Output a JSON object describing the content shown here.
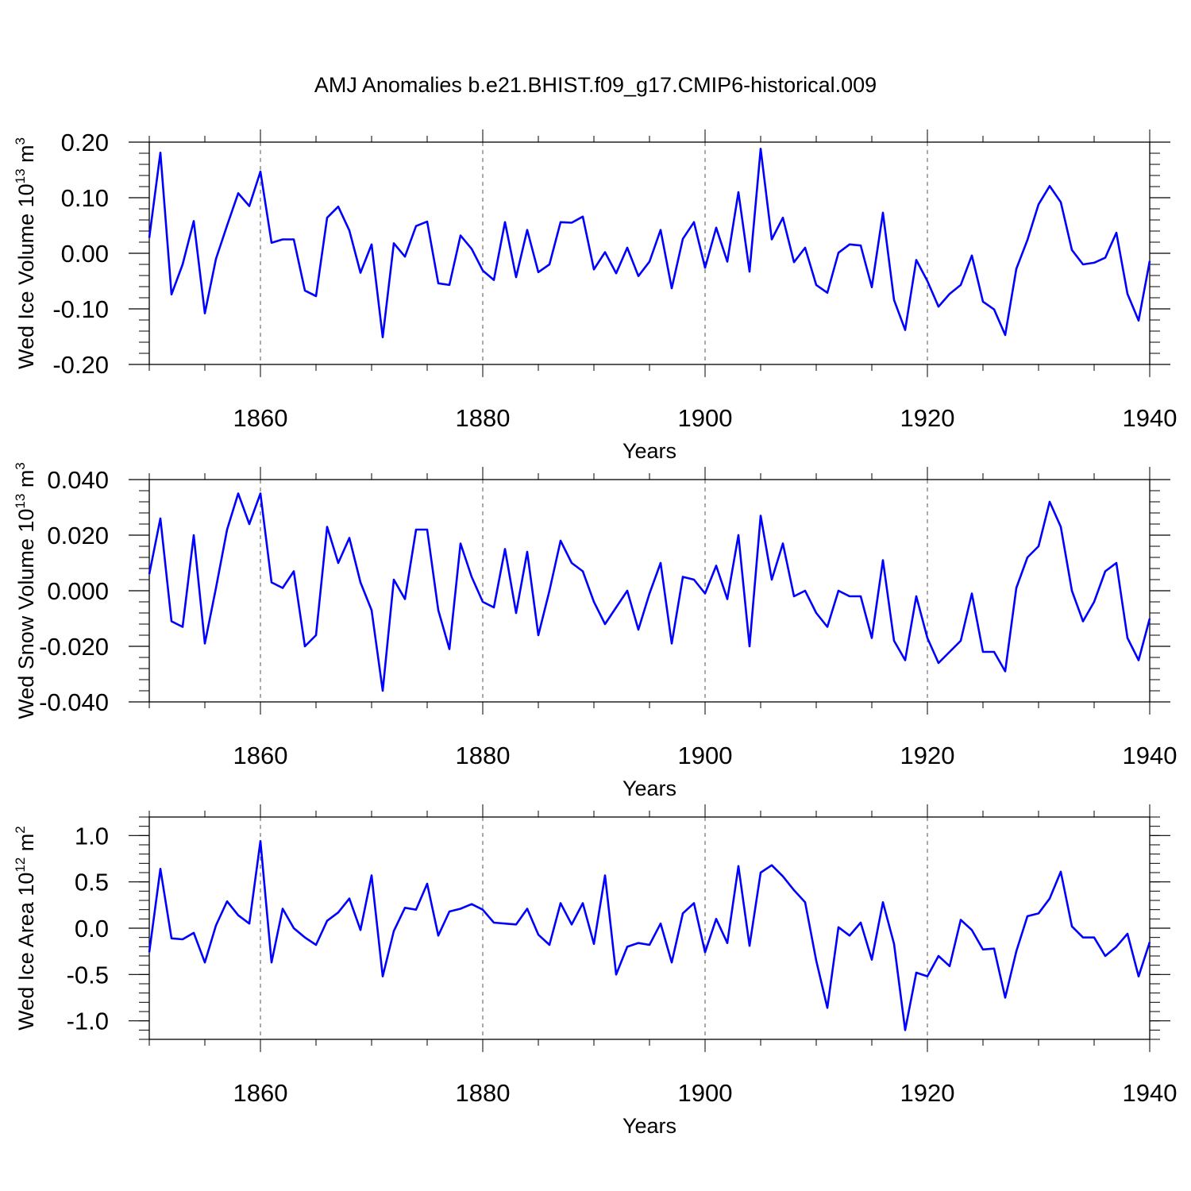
{
  "title": "AMJ Anomalies b.e21.BHIST.f09_g17.CMIP6-historical.009",
  "line_color": "#0000ff",
  "chart_data": [
    {
      "type": "line",
      "ylabel_main": "Wed Ice Volume 10",
      "ylabel_exp": "13",
      "ylabel_unit": " m",
      "ylabel_unit_exp": "3",
      "xlabel": "Years",
      "xlim": [
        1850,
        1940
      ],
      "ylim": [
        -0.2,
        0.2
      ],
      "yticks": [
        -0.2,
        -0.1,
        0.0,
        0.1,
        0.2
      ],
      "ytick_labels": [
        "-0.20",
        "-0.10",
        "0.00",
        "0.10",
        "0.20"
      ],
      "xticks": [
        1860,
        1880,
        1900,
        1920,
        1940
      ],
      "xtick_labels": [
        "1860",
        "1880",
        "1900",
        "1920",
        "1940"
      ],
      "x_start": 1850,
      "values": [
        0.028,
        0.181,
        -0.074,
        -0.02,
        0.058,
        -0.108,
        -0.01,
        0.05,
        0.108,
        0.085,
        0.147,
        0.019,
        0.025,
        0.025,
        -0.067,
        -0.077,
        0.064,
        0.084,
        0.041,
        -0.035,
        0.016,
        -0.151,
        0.018,
        -0.006,
        0.049,
        0.057,
        -0.054,
        -0.057,
        0.032,
        0.008,
        -0.031,
        -0.048,
        0.056,
        -0.043,
        0.042,
        -0.034,
        -0.02,
        0.056,
        0.055,
        0.066,
        -0.029,
        0.002,
        -0.036,
        0.01,
        -0.041,
        -0.015,
        0.042,
        -0.063,
        0.026,
        0.056,
        -0.026,
        0.046,
        -0.015,
        0.11,
        -0.033,
        0.188,
        0.025,
        0.064,
        -0.016,
        0.01,
        -0.057,
        -0.071,
        0.001,
        0.016,
        0.014,
        -0.061,
        0.073,
        -0.084,
        -0.138,
        -0.012,
        -0.05,
        -0.096,
        -0.073,
        -0.057,
        -0.004,
        -0.087,
        -0.101,
        -0.147,
        -0.028,
        0.024,
        0.088,
        0.121,
        0.092,
        0.006,
        -0.02,
        -0.017,
        -0.008,
        0.037,
        -0.073,
        -0.121,
        -0.014
      ]
    },
    {
      "type": "line",
      "ylabel_main": "Wed Snow Volume 10",
      "ylabel_exp": "13",
      "ylabel_unit": " m",
      "ylabel_unit_exp": "3",
      "xlabel": "Years",
      "xlim": [
        1850,
        1940
      ],
      "ylim": [
        -0.04,
        0.04
      ],
      "yticks": [
        -0.04,
        -0.02,
        0.0,
        0.02,
        0.04
      ],
      "ytick_labels": [
        "-0.040",
        "-0.020",
        "0.000",
        "0.020",
        "0.040"
      ],
      "xticks": [
        1860,
        1880,
        1900,
        1920,
        1940
      ],
      "xtick_labels": [
        "1860",
        "1880",
        "1900",
        "1920",
        "1940"
      ],
      "x_start": 1850,
      "values": [
        0.006,
        0.026,
        -0.011,
        -0.013,
        0.02,
        -0.019,
        0.001,
        0.022,
        0.035,
        0.024,
        0.035,
        0.003,
        0.001,
        0.007,
        -0.02,
        -0.016,
        0.023,
        0.01,
        0.019,
        0.003,
        -0.007,
        -0.036,
        0.004,
        -0.003,
        0.022,
        0.022,
        -0.007,
        -0.021,
        0.017,
        0.005,
        -0.004,
        -0.006,
        0.015,
        -0.008,
        0.014,
        -0.016,
        0.0,
        0.018,
        0.01,
        0.007,
        -0.004,
        -0.012,
        -0.006,
        0.0,
        -0.014,
        -0.001,
        0.01,
        -0.019,
        0.005,
        0.004,
        -0.001,
        0.009,
        -0.003,
        0.02,
        -0.02,
        0.027,
        0.004,
        0.017,
        -0.002,
        0.0,
        -0.008,
        -0.013,
        0.0,
        -0.002,
        -0.002,
        -0.017,
        0.011,
        -0.018,
        -0.025,
        -0.002,
        -0.017,
        -0.026,
        -0.022,
        -0.018,
        -0.001,
        -0.022,
        -0.022,
        -0.029,
        0.001,
        0.012,
        0.016,
        0.032,
        0.023,
        0.0,
        -0.011,
        -0.004,
        0.007,
        0.01,
        -0.017,
        -0.025,
        -0.01
      ]
    },
    {
      "type": "line",
      "ylabel_main": "Wed Ice Area 10",
      "ylabel_exp": "12",
      "ylabel_unit": " m",
      "ylabel_unit_exp": "2",
      "xlabel": "Years",
      "xlim": [
        1850,
        1940
      ],
      "ylim": [
        -1.2,
        1.2
      ],
      "yticks": [
        -1.0,
        -0.5,
        0.0,
        0.5,
        1.0
      ],
      "ytick_labels": [
        "-1.0",
        "-0.5",
        "0.0",
        "0.5",
        "1.0"
      ],
      "xticks": [
        1860,
        1880,
        1900,
        1920,
        1940
      ],
      "xtick_labels": [
        "1860",
        "1880",
        "1900",
        "1920",
        "1940"
      ],
      "x_start": 1850,
      "values": [
        -0.26,
        0.64,
        -0.11,
        -0.12,
        -0.05,
        -0.37,
        0.03,
        0.29,
        0.14,
        0.05,
        0.94,
        -0.37,
        0.21,
        0.0,
        -0.1,
        -0.18,
        0.08,
        0.17,
        0.32,
        -0.02,
        0.57,
        -0.52,
        -0.03,
        0.22,
        0.2,
        0.48,
        -0.08,
        0.18,
        0.21,
        0.26,
        0.2,
        0.06,
        0.05,
        0.04,
        0.21,
        -0.07,
        -0.18,
        0.27,
        0.04,
        0.27,
        -0.17,
        0.57,
        -0.5,
        -0.2,
        -0.16,
        -0.18,
        0.05,
        -0.37,
        0.16,
        0.27,
        -0.26,
        0.1,
        -0.16,
        0.67,
        -0.19,
        0.6,
        0.68,
        0.56,
        0.41,
        0.28,
        -0.35,
        -0.86,
        0.01,
        -0.08,
        0.06,
        -0.34,
        0.28,
        -0.17,
        -1.1,
        -0.48,
        -0.52,
        -0.3,
        -0.41,
        0.09,
        -0.02,
        -0.23,
        -0.22,
        -0.75,
        -0.25,
        0.13,
        0.16,
        0.32,
        0.61,
        0.02,
        -0.1,
        -0.1,
        -0.3,
        -0.2,
        -0.06,
        -0.52,
        -0.15
      ]
    }
  ]
}
